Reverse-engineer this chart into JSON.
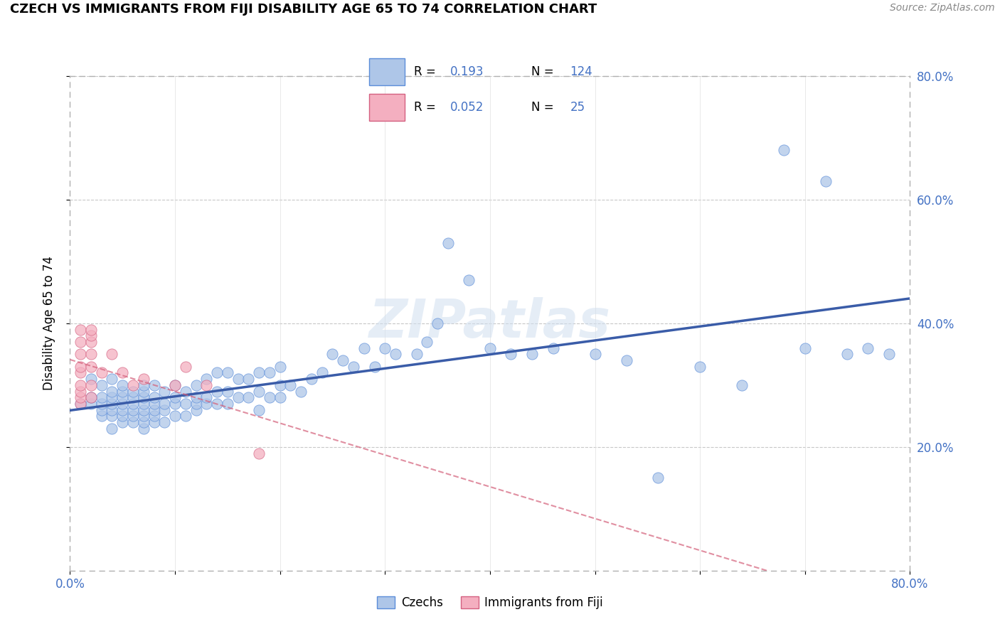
{
  "title": "CZECH VS IMMIGRANTS FROM FIJI DISABILITY AGE 65 TO 74 CORRELATION CHART",
  "source_text": "Source: ZipAtlas.com",
  "ylabel": "Disability Age 65 to 74",
  "xlim": [
    0.0,
    0.8
  ],
  "ylim": [
    0.0,
    0.8
  ],
  "ytick_vals": [
    0.2,
    0.4,
    0.6,
    0.8
  ],
  "ytick_labels": [
    "20.0%",
    "40.0%",
    "60.0%",
    "80.0%"
  ],
  "watermark_text": "ZIPatlas",
  "czechs_color": "#aec6e8",
  "czechs_edge": "#5b8dd9",
  "fiji_color": "#f4afc0",
  "fiji_edge": "#d46080",
  "line_czech_color": "#3a5ca8",
  "line_fiji_color": "#d4607a",
  "czechs_x": [
    0.01,
    0.02,
    0.02,
    0.02,
    0.03,
    0.03,
    0.03,
    0.03,
    0.03,
    0.04,
    0.04,
    0.04,
    0.04,
    0.04,
    0.04,
    0.04,
    0.05,
    0.05,
    0.05,
    0.05,
    0.05,
    0.05,
    0.05,
    0.06,
    0.06,
    0.06,
    0.06,
    0.06,
    0.06,
    0.07,
    0.07,
    0.07,
    0.07,
    0.07,
    0.07,
    0.07,
    0.07,
    0.08,
    0.08,
    0.08,
    0.08,
    0.08,
    0.08,
    0.09,
    0.09,
    0.09,
    0.09,
    0.1,
    0.1,
    0.1,
    0.1,
    0.11,
    0.11,
    0.11,
    0.12,
    0.12,
    0.12,
    0.12,
    0.13,
    0.13,
    0.13,
    0.14,
    0.14,
    0.14,
    0.15,
    0.15,
    0.15,
    0.16,
    0.16,
    0.17,
    0.17,
    0.18,
    0.18,
    0.18,
    0.19,
    0.19,
    0.2,
    0.2,
    0.2,
    0.21,
    0.22,
    0.23,
    0.24,
    0.25,
    0.26,
    0.27,
    0.28,
    0.29,
    0.3,
    0.31,
    0.33,
    0.34,
    0.35,
    0.36,
    0.38,
    0.4,
    0.42,
    0.44,
    0.46,
    0.5,
    0.53,
    0.56,
    0.6,
    0.64,
    0.68,
    0.7,
    0.72,
    0.74,
    0.76,
    0.78
  ],
  "czechs_y": [
    0.27,
    0.27,
    0.28,
    0.31,
    0.25,
    0.26,
    0.27,
    0.28,
    0.3,
    0.23,
    0.25,
    0.26,
    0.27,
    0.28,
    0.29,
    0.31,
    0.24,
    0.25,
    0.26,
    0.27,
    0.28,
    0.29,
    0.3,
    0.24,
    0.25,
    0.26,
    0.27,
    0.28,
    0.29,
    0.23,
    0.24,
    0.25,
    0.26,
    0.27,
    0.28,
    0.29,
    0.3,
    0.24,
    0.25,
    0.26,
    0.27,
    0.28,
    0.3,
    0.24,
    0.26,
    0.27,
    0.29,
    0.25,
    0.27,
    0.28,
    0.3,
    0.25,
    0.27,
    0.29,
    0.26,
    0.27,
    0.28,
    0.3,
    0.27,
    0.28,
    0.31,
    0.27,
    0.29,
    0.32,
    0.27,
    0.29,
    0.32,
    0.28,
    0.31,
    0.28,
    0.31,
    0.26,
    0.29,
    0.32,
    0.28,
    0.32,
    0.28,
    0.3,
    0.33,
    0.3,
    0.29,
    0.31,
    0.32,
    0.35,
    0.34,
    0.33,
    0.36,
    0.33,
    0.36,
    0.35,
    0.35,
    0.37,
    0.4,
    0.53,
    0.47,
    0.36,
    0.35,
    0.35,
    0.36,
    0.35,
    0.34,
    0.15,
    0.33,
    0.3,
    0.68,
    0.36,
    0.63,
    0.35,
    0.36,
    0.35
  ],
  "fiji_x": [
    0.01,
    0.01,
    0.01,
    0.01,
    0.01,
    0.01,
    0.01,
    0.01,
    0.01,
    0.02,
    0.02,
    0.02,
    0.02,
    0.02,
    0.02,
    0.02,
    0.03,
    0.04,
    0.05,
    0.06,
    0.07,
    0.1,
    0.11,
    0.13,
    0.18
  ],
  "fiji_y": [
    0.27,
    0.28,
    0.29,
    0.3,
    0.32,
    0.33,
    0.35,
    0.37,
    0.39,
    0.28,
    0.3,
    0.33,
    0.35,
    0.37,
    0.38,
    0.39,
    0.32,
    0.35,
    0.32,
    0.3,
    0.31,
    0.3,
    0.33,
    0.3,
    0.19
  ]
}
